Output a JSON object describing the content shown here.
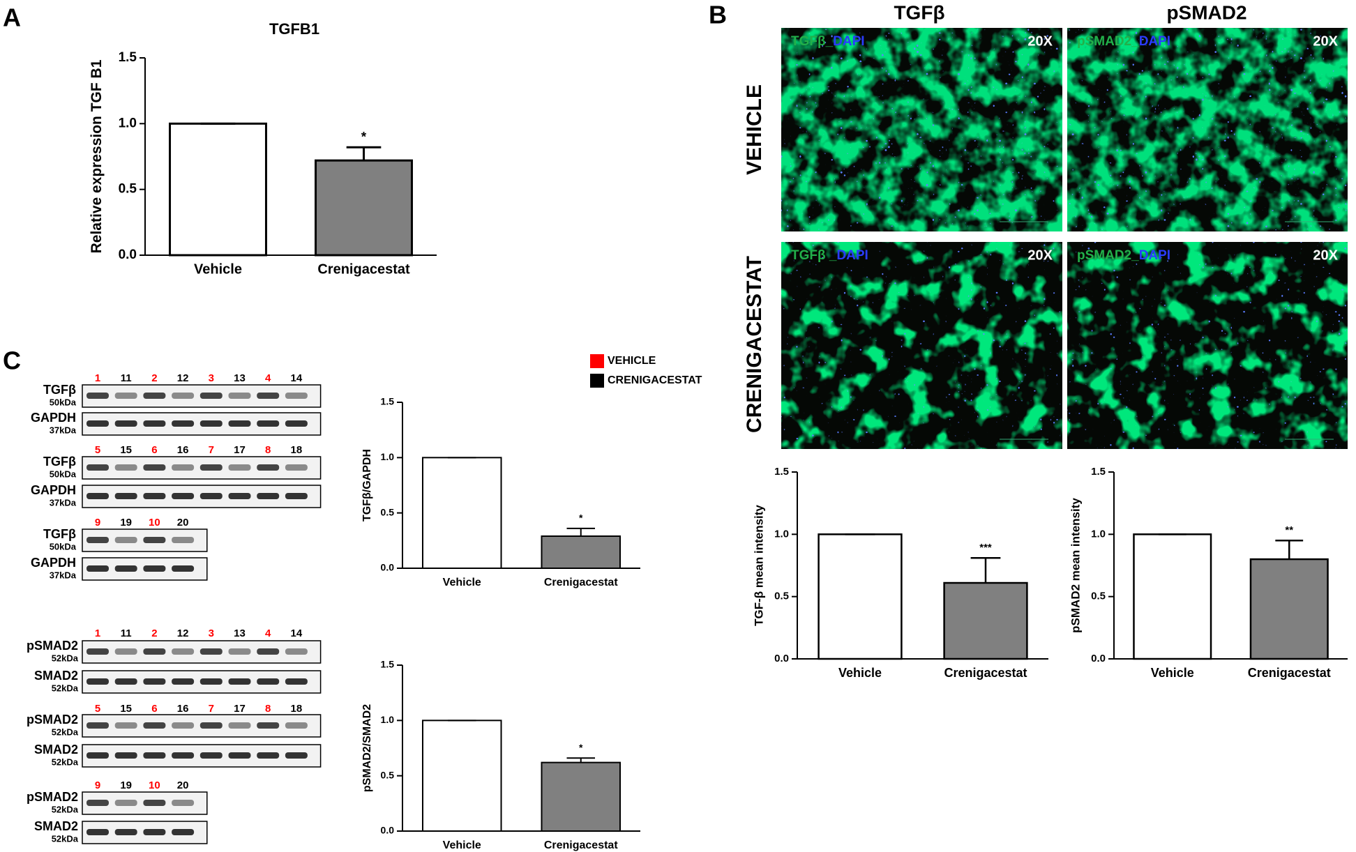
{
  "panel_labels": [
    "A",
    "B",
    "C"
  ],
  "chart_data": [
    {
      "type": "bar",
      "title": "TGFB1",
      "ylabel": "Relative expression TGF B1",
      "categories": [
        "Vehicle",
        "Crenigacestat"
      ],
      "values": [
        1.0,
        0.72
      ],
      "errors": [
        0,
        0.1
      ],
      "colors": [
        "#ffffff",
        "#808080"
      ],
      "ylim": [
        0,
        1.5
      ],
      "yticks": [
        {
          "value": 0,
          "label": "0.0"
        },
        {
          "value": 0.5,
          "label": "0.5"
        },
        {
          "value": 1,
          "label": "1.0"
        },
        {
          "value": 1.5,
          "label": "1.5"
        }
      ],
      "significance": "*"
    },
    {
      "type": "bar",
      "ylabel": "TGFβ/GAPDH",
      "categories": [
        "Vehicle",
        "Crenigacestat"
      ],
      "values": [
        1.0,
        0.29
      ],
      "errors": [
        0,
        0.07
      ],
      "colors": [
        "#ffffff",
        "#808080"
      ],
      "ylim": [
        0,
        1.5
      ],
      "yticks": [
        {
          "value": 0,
          "label": "0.0"
        },
        {
          "value": 0.5,
          "label": "0.5"
        },
        {
          "value": 1,
          "label": "1.0"
        },
        {
          "value": 1.5,
          "label": "1.5"
        }
      ],
      "significance": "*"
    },
    {
      "type": "bar",
      "ylabel": "pSMAD2/SMAD2",
      "categories": [
        "Vehicle",
        "Crenigacestat"
      ],
      "values": [
        1.0,
        0.62
      ],
      "errors": [
        0,
        0.04
      ],
      "colors": [
        "#ffffff",
        "#808080"
      ],
      "ylim": [
        0,
        1.5
      ],
      "yticks": [
        {
          "value": 0,
          "label": "0.0"
        },
        {
          "value": 0.5,
          "label": "0.5"
        },
        {
          "value": 1,
          "label": "1.0"
        },
        {
          "value": 1.5,
          "label": "1.5"
        }
      ],
      "significance": "*"
    },
    {
      "type": "bar",
      "ylabel": "TGF-β mean intensity",
      "categories": [
        "Vehicle",
        "Crenigacestat"
      ],
      "values": [
        1.0,
        0.61
      ],
      "errors": [
        0,
        0.2
      ],
      "colors": [
        "#ffffff",
        "#808080"
      ],
      "ylim": [
        0,
        1.5
      ],
      "yticks": [
        {
          "value": 0,
          "label": "0.0"
        },
        {
          "value": 0.5,
          "label": "0.5"
        },
        {
          "value": 1,
          "label": "1.0"
        },
        {
          "value": 1.5,
          "label": "1.5"
        }
      ],
      "significance": "***"
    },
    {
      "type": "bar",
      "ylabel": "pSMAD2 mean intensity",
      "categories": [
        "Vehicle",
        "Crenigacestat"
      ],
      "values": [
        1.0,
        0.8
      ],
      "errors": [
        0,
        0.15
      ],
      "colors": [
        "#ffffff",
        "#808080"
      ],
      "ylim": [
        0,
        1.5
      ],
      "yticks": [
        {
          "value": 0,
          "label": "0.0"
        },
        {
          "value": 0.5,
          "label": "0.5"
        },
        {
          "value": 1,
          "label": "1.0"
        },
        {
          "value": 1.5,
          "label": "1.5"
        }
      ],
      "significance": "**"
    }
  ],
  "micrographs": {
    "columns": [
      "TGFβ",
      "pSMAD2"
    ],
    "rows": [
      "VEHICLE",
      "CRENIGACESTAT"
    ],
    "magnification": "20X",
    "panels": [
      [
        {
          "stain": "TGFβ_",
          "counterstain": "DAPI"
        },
        {
          "stain": "pSMAD2_",
          "counterstain": "DAPI"
        }
      ],
      [
        {
          "stain": "TGFβ _",
          "counterstain": "DAPI"
        },
        {
          "stain": "pSMAD2_",
          "counterstain": "DAPI"
        }
      ]
    ]
  },
  "blot_legend": [
    {
      "name": "VEHICLE",
      "color": "#ff0000"
    },
    {
      "name": "CRENIGACESTAT",
      "color": "#000000"
    }
  ],
  "blots": [
    {
      "lanes": [
        1,
        11,
        2,
        12,
        3,
        13,
        4,
        14
      ],
      "lane_groups": [
        0,
        1,
        0,
        1,
        0,
        1,
        0,
        1
      ],
      "rows": [
        {
          "protein": "TGFβ",
          "size": "50kDa"
        },
        {
          "protein": "GAPDH",
          "size": "37kDa"
        }
      ]
    },
    {
      "lanes": [
        5,
        15,
        6,
        16,
        7,
        17,
        8,
        18
      ],
      "lane_groups": [
        0,
        1,
        0,
        1,
        0,
        1,
        0,
        1
      ],
      "rows": [
        {
          "protein": "TGFβ",
          "size": "50kDa"
        },
        {
          "protein": "GAPDH",
          "size": "37kDa"
        }
      ]
    },
    {
      "lanes": [
        9,
        19,
        10,
        20
      ],
      "lane_groups": [
        0,
        1,
        0,
        1
      ],
      "rows": [
        {
          "protein": "TGFβ",
          "size": "50kDa"
        },
        {
          "protein": "GAPDH",
          "size": "37kDa"
        }
      ]
    },
    {
      "lanes": [
        1,
        11,
        2,
        12,
        3,
        13,
        4,
        14
      ],
      "lane_groups": [
        0,
        1,
        0,
        1,
        0,
        1,
        0,
        1
      ],
      "rows": [
        {
          "protein": "pSMAD2",
          "size": "52kDa"
        },
        {
          "protein": "SMAD2",
          "size": "52kDa"
        }
      ]
    },
    {
      "lanes": [
        5,
        15,
        6,
        16,
        7,
        17,
        8,
        18
      ],
      "lane_groups": [
        0,
        1,
        0,
        1,
        0,
        1,
        0,
        1
      ],
      "rows": [
        {
          "protein": "pSMAD2",
          "size": "52kDa"
        },
        {
          "protein": "SMAD2",
          "size": "52kDa"
        }
      ]
    },
    {
      "lanes": [
        9,
        19,
        10,
        20
      ],
      "lane_groups": [
        0,
        1,
        0,
        1
      ],
      "rows": [
        {
          "protein": "pSMAD2",
          "size": "52kDa"
        },
        {
          "protein": "SMAD2",
          "size": "52kDa"
        }
      ]
    }
  ]
}
